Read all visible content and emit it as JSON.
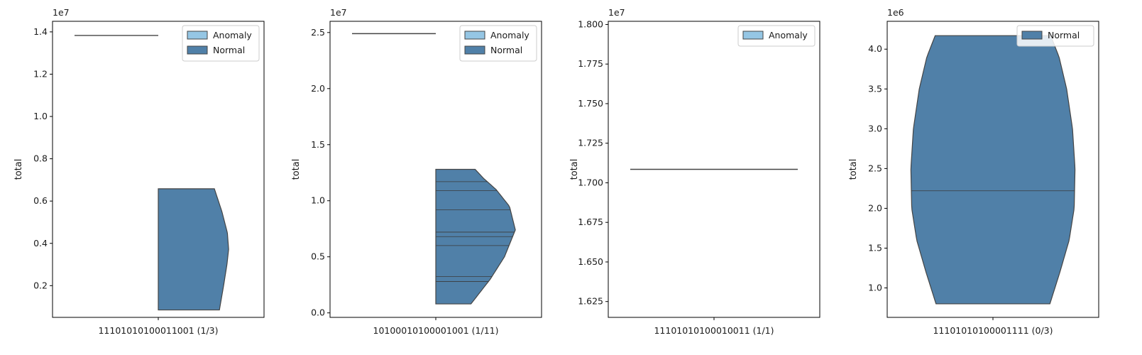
{
  "colors": {
    "anomaly": "#95c6e4",
    "normal": "#5080a8",
    "edge": "#444444",
    "quartile": "#3a3a3a"
  },
  "chart_data": [
    {
      "type": "violin",
      "category": "11101010100011001 (1/3)",
      "ylabel": "total",
      "offset_text": "1e7",
      "ylim": [
        0.05,
        1.45
      ],
      "yticks": [
        0.2,
        0.4,
        0.6,
        0.8,
        1.0,
        1.2,
        1.4
      ],
      "ytick_labels": [
        "0.2",
        "0.4",
        "0.6",
        "0.8",
        "1.0",
        "1.2",
        "1.4"
      ],
      "legend": [
        "Anomaly",
        "Normal"
      ],
      "legend_position": "upper right",
      "series": [
        {
          "name": "Anomaly",
          "side": "left",
          "kind": "point",
          "value": 1.383
        },
        {
          "name": "Normal",
          "side": "right",
          "min": 0.085,
          "max": 0.658,
          "profile": [
            [
              0.085,
              0.73
            ],
            [
              0.2,
              0.78
            ],
            [
              0.3,
              0.82
            ],
            [
              0.372,
              0.84
            ],
            [
              0.45,
              0.825
            ],
            [
              0.55,
              0.76
            ],
            [
              0.658,
              0.67
            ]
          ],
          "quartiles": []
        }
      ]
    },
    {
      "type": "violin",
      "category": "10100010100001001 (1/11)",
      "ylabel": "total",
      "offset_text": "1e7",
      "ylim": [
        -0.04,
        2.6
      ],
      "yticks": [
        0.0,
        0.5,
        1.0,
        1.5,
        2.0,
        2.5
      ],
      "ytick_labels": [
        "0.0",
        "0.5",
        "1.0",
        "1.5",
        "2.0",
        "2.5"
      ],
      "legend": [
        "Anomaly",
        "Normal"
      ],
      "legend_position": "upper right",
      "series": [
        {
          "name": "Anomaly",
          "side": "left",
          "kind": "point",
          "value": 2.49
        },
        {
          "name": "Normal",
          "side": "right",
          "min": 0.08,
          "max": 1.28,
          "profile": [
            [
              0.08,
              0.42
            ],
            [
              0.3,
              0.65
            ],
            [
              0.5,
              0.82
            ],
            [
              0.74,
              0.95
            ],
            [
              0.95,
              0.88
            ],
            [
              1.1,
              0.72
            ],
            [
              1.2,
              0.57
            ],
            [
              1.28,
              0.47
            ]
          ],
          "quartiles": [
            0.28,
            0.325,
            0.6,
            0.68,
            0.72,
            0.92,
            1.09,
            1.17
          ]
        }
      ]
    },
    {
      "type": "violin",
      "category": "11101010100010011 (1/1)",
      "ylabel": "total",
      "offset_text": "1e7",
      "ylim": [
        1.615,
        1.802
      ],
      "yticks": [
        1.625,
        1.65,
        1.675,
        1.7,
        1.725,
        1.75,
        1.775,
        1.8
      ],
      "ytick_labels": [
        "1.625",
        "1.650",
        "1.675",
        "1.700",
        "1.725",
        "1.750",
        "1.775",
        "1.800"
      ],
      "legend": [
        "Anomaly"
      ],
      "legend_position": "upper right",
      "series": [
        {
          "name": "Anomaly",
          "side": "full",
          "kind": "point",
          "value": 1.7085
        }
      ]
    },
    {
      "type": "violin",
      "category": "11101010100001111 (0/3)",
      "ylabel": "total",
      "offset_text": "1e6",
      "ylim": [
        0.63,
        4.35
      ],
      "yticks": [
        1.0,
        1.5,
        2.0,
        2.5,
        3.0,
        3.5,
        4.0
      ],
      "ytick_labels": [
        "1.0",
        "1.5",
        "2.0",
        "2.5",
        "3.0",
        "3.5",
        "4.0"
      ],
      "legend": [
        "Normal"
      ],
      "legend_position": "upper right",
      "series": [
        {
          "name": "Normal",
          "side": "full",
          "min": 0.8,
          "max": 4.17,
          "profile": [
            [
              0.8,
              0.68
            ],
            [
              1.2,
              0.8
            ],
            [
              1.6,
              0.91
            ],
            [
              2.0,
              0.97
            ],
            [
              2.5,
              0.98
            ],
            [
              3.0,
              0.95
            ],
            [
              3.5,
              0.88
            ],
            [
              3.9,
              0.79
            ],
            [
              4.17,
              0.69
            ]
          ],
          "quartiles": [
            2.22
          ]
        }
      ]
    }
  ]
}
